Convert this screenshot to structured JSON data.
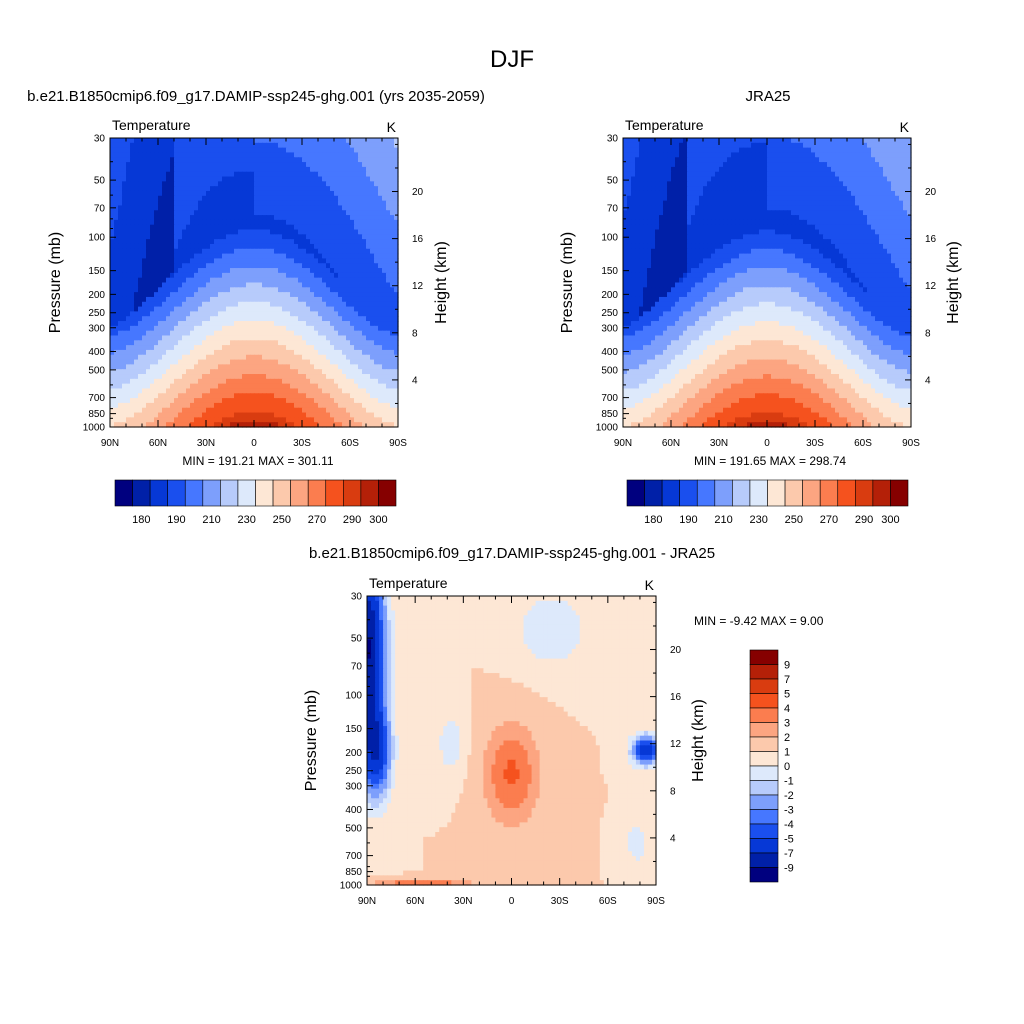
{
  "figure_title": "DJF",
  "chart_data": [
    {
      "type": "heatmap",
      "panel": "model",
      "title": "b.e21.B1850cmip6.f09_g17.DAMIP-ssp245-ghg.001 (yrs 2035-2059)",
      "left_label": "Temperature",
      "units": "K",
      "xlabel": "",
      "ylabel": "Pressure (mb)",
      "ylabel_right": "Height (km)",
      "x_ticks": [
        "90N",
        "60N",
        "30N",
        "0",
        "30S",
        "60S",
        "90S"
      ],
      "x_range": [
        90,
        -90
      ],
      "pressure_ticks": [
        30,
        50,
        70,
        100,
        150,
        200,
        250,
        300,
        400,
        500,
        700,
        850,
        1000
      ],
      "pressure_range": [
        30,
        1000
      ],
      "height_ticks": [
        4,
        8,
        12,
        16,
        20
      ],
      "min_max_text": "MIN = 191.21  MAX = 301.11",
      "min": 191.21,
      "max": 301.11,
      "contour_levels": [
        175,
        180,
        185,
        190,
        200,
        210,
        220,
        230,
        240,
        250,
        260,
        270,
        280,
        290,
        295,
        300
      ],
      "colorbar_labels": [
        "180",
        "190",
        "210",
        "230",
        "250",
        "270",
        "290",
        "300"
      ],
      "field": "model"
    },
    {
      "type": "heatmap",
      "panel": "obs",
      "title": "JRA25",
      "left_label": "Temperature",
      "units": "K",
      "xlabel": "",
      "ylabel": "Pressure (mb)",
      "ylabel_right": "Height (km)",
      "x_ticks": [
        "90N",
        "60N",
        "30N",
        "0",
        "30S",
        "60S",
        "90S"
      ],
      "x_range": [
        90,
        -90
      ],
      "pressure_ticks": [
        30,
        50,
        70,
        100,
        150,
        200,
        250,
        300,
        400,
        500,
        700,
        850,
        1000
      ],
      "pressure_range": [
        30,
        1000
      ],
      "height_ticks": [
        4,
        8,
        12,
        16,
        20
      ],
      "min_max_text": "MIN = 191.65  MAX = 298.74",
      "min": 191.65,
      "max": 298.74,
      "contour_levels": [
        175,
        180,
        185,
        190,
        200,
        210,
        220,
        230,
        240,
        250,
        260,
        270,
        280,
        290,
        295,
        300
      ],
      "colorbar_labels": [
        "180",
        "190",
        "210",
        "230",
        "250",
        "270",
        "290",
        "300"
      ],
      "field": "obs"
    },
    {
      "type": "heatmap",
      "panel": "diff",
      "title": "b.e21.B1850cmip6.f09_g17.DAMIP-ssp245-ghg.001 - JRA25",
      "left_label": "Temperature",
      "units": "K",
      "xlabel": "",
      "ylabel": "Pressure (mb)",
      "ylabel_right": "Height (km)",
      "x_ticks": [
        "90N",
        "60N",
        "30N",
        "0",
        "30S",
        "60S",
        "90S"
      ],
      "x_range": [
        90,
        -90
      ],
      "pressure_ticks": [
        30,
        50,
        70,
        100,
        150,
        200,
        250,
        300,
        400,
        500,
        700,
        850,
        1000
      ],
      "pressure_range": [
        30,
        1000
      ],
      "height_ticks": [
        4,
        8,
        12,
        16,
        20
      ],
      "min_max_text": "MIN =  -9.42  MAX =   9.00",
      "min": -9.42,
      "max": 9.0,
      "contour_levels": [
        -10,
        -9,
        -7,
        -5,
        -4,
        -3,
        -2,
        -1,
        0,
        1,
        2,
        3,
        4,
        5,
        7,
        9
      ],
      "colorbar_labels": [
        "9",
        "7",
        "5",
        "4",
        "3",
        "2",
        "1",
        "0",
        "-1",
        "-2",
        "-3",
        "-4",
        "-5",
        "-7",
        "-9"
      ],
      "field": "diff"
    }
  ],
  "palette": [
    "#00007f",
    "#0020a8",
    "#0638d6",
    "#1a4fee",
    "#4677ff",
    "#7d9ffc",
    "#b7cbfb",
    "#dde9fb",
    "#fde7d5",
    "#fcc9ac",
    "#fca581",
    "#fb7d4f",
    "#f5521e",
    "#d93c10",
    "#b42008",
    "#860000"
  ]
}
